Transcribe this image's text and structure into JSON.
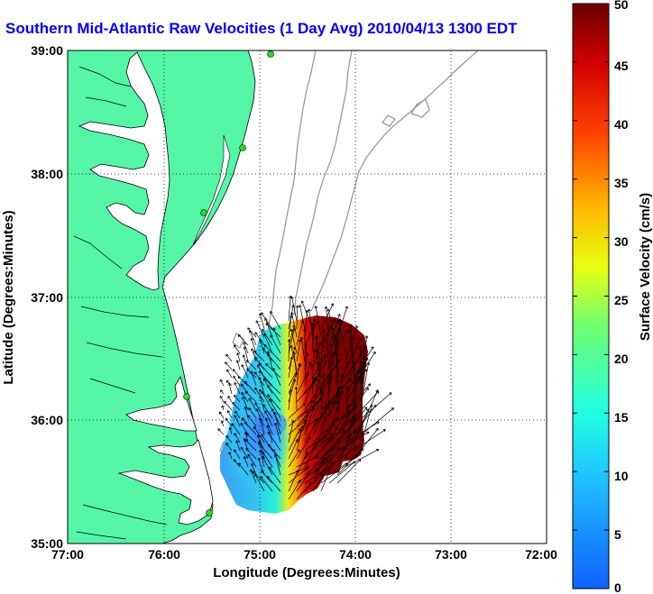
{
  "title": "Southern Mid-Atlantic Raw Velocities (1 Day Avg) 2010/04/13 1300 EDT",
  "map": {
    "xlabel": "Longitude (Degrees:Minutes)",
    "ylabel": "Latitude (Degrees:Minutes)",
    "lon_range": [
      -77,
      -72
    ],
    "lat_range": [
      35,
      39
    ],
    "lon_ticks": [
      "77:00",
      "76:00",
      "75:00",
      "74:00",
      "73:00",
      "72:00"
    ],
    "lat_ticks": [
      "39:00",
      "38:00",
      "37:00",
      "36:00",
      "35:00"
    ],
    "grid": "dotted",
    "colors": {
      "land": "#55f5a8",
      "water": "#ffffff",
      "coastline": "#000000",
      "bathymetry": "#9a9a9a",
      "stations": "#22dd22",
      "vectors": "#000000"
    },
    "layers": [
      "land",
      "coastline",
      "bathymetry-contours",
      "hf-radar-stations",
      "velocity-field",
      "current-vectors"
    ]
  },
  "colorbar": {
    "label": "Surface Velocity (cm/s)",
    "min": 0,
    "max": 50,
    "ticks": [
      "0",
      "5",
      "10",
      "15",
      "20",
      "25",
      "30",
      "35",
      "40",
      "45",
      "50"
    ],
    "colormap": "jet"
  }
}
